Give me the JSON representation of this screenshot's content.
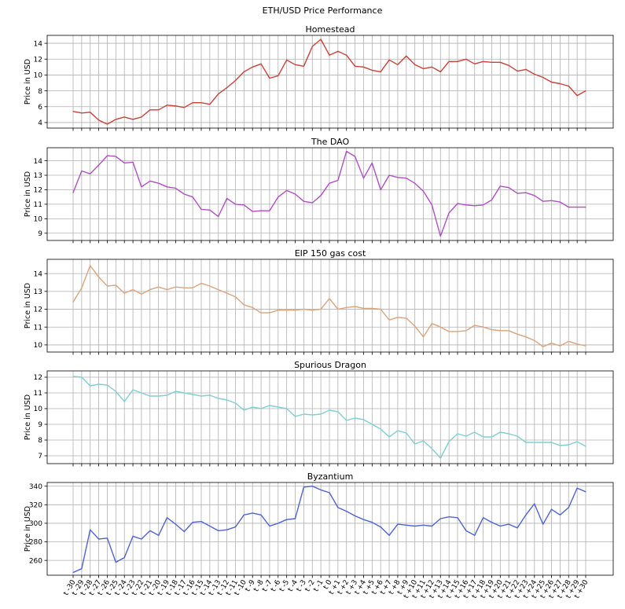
{
  "chart_data": {
    "type": "line",
    "suptitle": "ETH/USD Price Performance",
    "ylabel": "Price in USD",
    "x": [
      "t -30",
      "t -29",
      "t -28",
      "t -27",
      "t -26",
      "t -25",
      "t -24",
      "t -23",
      "t -22",
      "t -21",
      "t -20",
      "t -19",
      "t -18",
      "t -17",
      "t -16",
      "t -15",
      "t -14",
      "t -13",
      "t -12",
      "t -11",
      "t -10",
      "t -9",
      "t -8",
      "t -7",
      "t -6",
      "t -5",
      "t -4",
      "t -3",
      "t -2",
      "t -1",
      "t 0",
      "t +1",
      "t +2",
      "t +3",
      "t +4",
      "t +5",
      "t +6",
      "t +7",
      "t +8",
      "t +9",
      "t +10",
      "t +11",
      "t +12",
      "t +13",
      "t +14",
      "t +15",
      "t +16",
      "t +17",
      "t +18",
      "t +19",
      "t +20",
      "t +21",
      "t +22",
      "t +23",
      "t +24",
      "t +25",
      "t +26",
      "t +27",
      "t +28",
      "t +29",
      "t +30"
    ],
    "grid": true,
    "panels": [
      {
        "title": "Homestead",
        "color": "#c9423a",
        "ylim": [
          3.3,
          15.0
        ],
        "yticks": [
          4,
          6,
          8,
          10,
          12,
          14
        ],
        "values": [
          5.4,
          5.2,
          5.3,
          4.3,
          3.8,
          4.4,
          4.7,
          4.4,
          4.7,
          5.6,
          5.6,
          6.2,
          6.1,
          5.9,
          6.5,
          6.5,
          6.3,
          7.6,
          8.4,
          9.3,
          10.4,
          11.0,
          11.4,
          9.6,
          9.9,
          11.9,
          11.3,
          11.1,
          13.6,
          14.5,
          12.5,
          13.0,
          12.5,
          11.1,
          11.0,
          10.6,
          10.4,
          11.9,
          11.3,
          12.4,
          11.3,
          10.8,
          11.0,
          10.4,
          11.7,
          11.7,
          12.0,
          11.4,
          11.7,
          11.6,
          11.6,
          11.2,
          10.5,
          10.7,
          10.1,
          9.7,
          9.1,
          8.9,
          8.6,
          7.4,
          8.0
        ]
      },
      {
        "title": "The DAO",
        "color": "#b04fc4",
        "ylim": [
          8.5,
          14.9
        ],
        "yticks": [
          9,
          10,
          11,
          12,
          13,
          14
        ],
        "values": [
          11.8,
          13.3,
          13.1,
          13.7,
          14.35,
          14.3,
          13.85,
          13.9,
          12.2,
          12.6,
          12.45,
          12.2,
          12.1,
          11.7,
          11.5,
          10.65,
          10.6,
          10.15,
          11.4,
          11.0,
          10.95,
          10.5,
          10.55,
          10.55,
          11.5,
          11.95,
          11.7,
          11.2,
          11.1,
          11.6,
          12.45,
          12.65,
          14.65,
          14.3,
          12.8,
          13.85,
          12.0,
          13.0,
          12.85,
          12.8,
          12.45,
          11.9,
          10.95,
          8.8,
          10.4,
          11.05,
          10.95,
          10.9,
          10.95,
          11.3,
          12.25,
          12.15,
          11.75,
          11.8,
          11.6,
          11.2,
          11.25,
          11.15,
          10.8,
          10.8,
          10.8
        ]
      },
      {
        "title": "EIP 150 gas cost",
        "color": "#d9a57e",
        "ylim": [
          9.6,
          14.8
        ],
        "yticks": [
          10,
          11,
          12,
          13,
          14
        ],
        "values": [
          12.4,
          13.2,
          14.45,
          13.8,
          13.3,
          13.35,
          12.9,
          13.1,
          12.85,
          13.1,
          13.25,
          13.1,
          13.25,
          13.2,
          13.2,
          13.45,
          13.3,
          13.1,
          12.9,
          12.7,
          12.25,
          12.1,
          11.8,
          11.8,
          11.95,
          11.95,
          11.95,
          12.0,
          11.95,
          12.0,
          12.6,
          12.0,
          12.1,
          12.15,
          12.05,
          12.05,
          12.0,
          11.4,
          11.55,
          11.5,
          11.05,
          10.45,
          11.2,
          11.0,
          10.75,
          10.75,
          10.8,
          11.1,
          11.0,
          10.85,
          10.8,
          10.8,
          10.6,
          10.45,
          10.25,
          9.9,
          10.1,
          9.95,
          10.2,
          10.05,
          9.95
        ]
      },
      {
        "title": "Spurious Dragon",
        "color": "#7fcfd3",
        "ylim": [
          6.5,
          12.4
        ],
        "yticks": [
          7,
          8,
          9,
          10,
          11,
          12
        ],
        "values": [
          12.05,
          12.0,
          11.45,
          11.55,
          11.5,
          11.1,
          10.45,
          11.2,
          11.0,
          10.8,
          10.8,
          10.85,
          11.1,
          11.0,
          10.9,
          10.8,
          10.85,
          10.65,
          10.55,
          10.35,
          9.9,
          10.1,
          10.0,
          10.2,
          10.1,
          10.0,
          9.5,
          9.65,
          9.6,
          9.65,
          9.9,
          9.8,
          9.25,
          9.4,
          9.3,
          9.0,
          8.7,
          8.2,
          8.6,
          8.45,
          7.75,
          7.95,
          7.45,
          6.85,
          7.9,
          8.4,
          8.25,
          8.5,
          8.2,
          8.2,
          8.5,
          8.4,
          8.25,
          7.85,
          7.85,
          7.85,
          7.85,
          7.65,
          7.7,
          7.9,
          7.6
        ]
      },
      {
        "title": "Byzantium",
        "color": "#4f63d2",
        "ylim": [
          244,
          344
        ],
        "yticks": [
          260,
          280,
          300,
          320,
          340
        ],
        "values": [
          247,
          251,
          293,
          283,
          284,
          258,
          263,
          286,
          283,
          292,
          287,
          306,
          299,
          291,
          301,
          302,
          297,
          292,
          293,
          296,
          309,
          311,
          309,
          297,
          300,
          304,
          305,
          339,
          340,
          336,
          333,
          317,
          313,
          308,
          304,
          301,
          296,
          287,
          299,
          298,
          297,
          298,
          297,
          305,
          307,
          306,
          292,
          287,
          306,
          301,
          297,
          299,
          295,
          309,
          321,
          299,
          315,
          309,
          317,
          338,
          334
        ]
      }
    ]
  }
}
